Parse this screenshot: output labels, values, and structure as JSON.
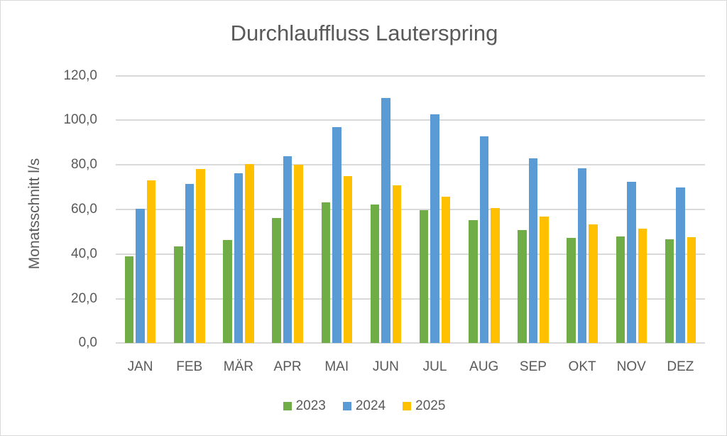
{
  "chart_data": {
    "type": "bar",
    "title": "Durchlauffluss Lauterspring",
    "xlabel": "",
    "ylabel": "Monatsschnitt l/s",
    "ylim": [
      0,
      120
    ],
    "yticks": [
      "0,0",
      "20,0",
      "40,0",
      "60,0",
      "80,0",
      "100,0",
      "120,0"
    ],
    "ytick_values": [
      0,
      20,
      40,
      60,
      80,
      100,
      120
    ],
    "grid": true,
    "legend_position": "bottom",
    "categories": [
      "JAN",
      "FEB",
      "MÄR",
      "APR",
      "MAI",
      "JUN",
      "JUL",
      "AUG",
      "SEP",
      "OKT",
      "NOV",
      "DEZ"
    ],
    "series": [
      {
        "name": "2023",
        "color": "#70ad47",
        "values": [
          39.0,
          43.5,
          46.3,
          56.3,
          63.1,
          62.1,
          59.8,
          55.2,
          50.7,
          47.3,
          47.9,
          46.5
        ]
      },
      {
        "name": "2024",
        "color": "#5b9bd5",
        "values": [
          60.4,
          71.6,
          76.2,
          84.0,
          97.0,
          110.0,
          102.6,
          92.7,
          82.8,
          78.5,
          72.4,
          70.0
        ]
      },
      {
        "name": "2025",
        "color": "#ffc000",
        "values": [
          73.2,
          78.3,
          80.4,
          80.1,
          75.0,
          70.9,
          65.6,
          60.5,
          56.8,
          53.4,
          51.5,
          47.7
        ]
      }
    ]
  }
}
